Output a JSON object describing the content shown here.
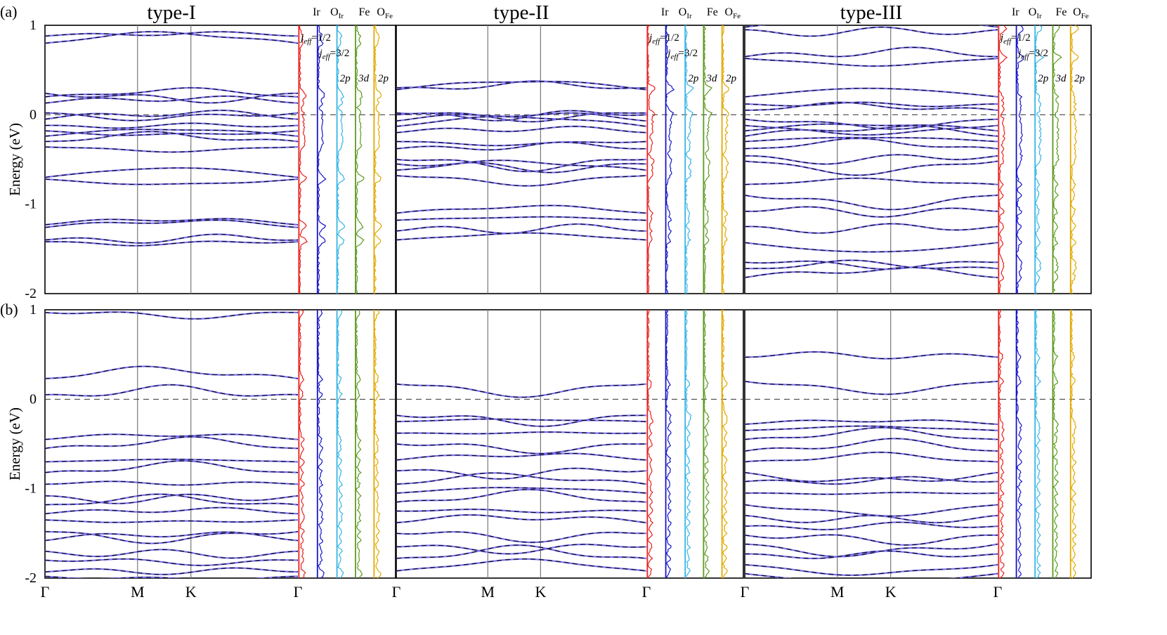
{
  "chart_data": {
    "type": "line",
    "panel_labels": [
      "(a)",
      "(b)"
    ],
    "ylabel": "Energy (eV)",
    "ylim": [
      -2,
      1
    ],
    "yticks": [
      "1",
      "0",
      "-1",
      "-2"
    ],
    "kpath": [
      "Γ",
      "M",
      "K",
      "Γ"
    ],
    "kpath_positions": [
      0,
      0.366,
      0.577,
      1
    ],
    "fermi_level": 0,
    "columns": [
      {
        "title": "type-I",
        "dos_headers": [
          "Ir",
          "O",
          "Fe",
          "O"
        ]
      },
      {
        "title": "type-II",
        "dos_headers": [
          "Ir",
          "O",
          "Fe",
          "O"
        ]
      },
      {
        "title": "type-III",
        "dos_headers": [
          "Ir",
          "O",
          "Fe",
          "O"
        ]
      }
    ],
    "dos_header_subscripts": [
      "Ir",
      "Fe"
    ],
    "dos_annotations": {
      "jeff_main": "j",
      "jeff_sub": "eff",
      "jeff_half": "=1/2",
      "jeff_threehalf": "=3/2",
      "o2p": "2p",
      "fe3d": "3d",
      "ofe2p": "2p"
    },
    "dos_channels": [
      {
        "name": "Ir jeff=1/2",
        "color": "#e8201d"
      },
      {
        "name": "Ir jeff=3/2",
        "color": "#1515c9"
      },
      {
        "name": "OIr 2p",
        "color": "#35b5e5"
      },
      {
        "name": "Fe 3d",
        "color": "#5c9a1e"
      },
      {
        "name": "OFe 2p",
        "color": "#e0a800"
      }
    ],
    "band_colors": {
      "dft": "#7a6ff0",
      "wannier": "#000000"
    },
    "panels": [
      {
        "row": "a",
        "col": "type-I",
        "bands_at_gamma": [
          0.88,
          0.8,
          0.24,
          0.2,
          0.13,
          0.02,
          -0.05,
          -0.12,
          -0.18,
          -0.24,
          -0.3,
          -0.36,
          -0.7,
          -0.72,
          -1.23,
          -1.26,
          -1.4,
          -1.42
        ]
      },
      {
        "row": "a",
        "col": "type-II",
        "bands_at_gamma": [
          0.3,
          0.28,
          0.02,
          0.0,
          -0.07,
          -0.13,
          -0.2,
          -0.3,
          -0.38,
          -0.5,
          -0.55,
          -0.62,
          -0.68,
          -1.1,
          -1.18,
          -1.3,
          -1.4
        ]
      },
      {
        "row": "a",
        "col": "type-III",
        "bands_at_gamma": [
          0.98,
          0.95,
          0.65,
          0.63,
          0.2,
          0.12,
          0.05,
          -0.05,
          -0.12,
          -0.18,
          -0.24,
          -0.3,
          -0.38,
          -0.46,
          -0.52,
          -0.78,
          -0.9,
          -1.08,
          -1.25,
          -1.43,
          -1.65,
          -1.72,
          -1.82
        ]
      },
      {
        "row": "b",
        "col": "type-I",
        "bands_at_gamma": [
          0.97,
          0.23,
          0.05,
          -0.45,
          -0.55,
          -0.7,
          -0.82,
          -0.95,
          -1.08,
          -1.18,
          -1.28,
          -1.35,
          -1.48,
          -1.58,
          -1.7,
          -1.8,
          -1.93,
          -1.98
        ]
      },
      {
        "row": "b",
        "col": "type-II",
        "bands_at_gamma": [
          0.17,
          -0.18,
          -0.25,
          -0.38,
          -0.5,
          -0.68,
          -0.8,
          -0.95,
          -1.05,
          -1.15,
          -1.25,
          -1.38,
          -1.5,
          -1.65,
          -1.78,
          -1.92
        ]
      },
      {
        "row": "b",
        "col": "type-III",
        "bands_at_gamma": [
          0.47,
          0.2,
          -0.28,
          -0.35,
          -0.45,
          -0.58,
          -0.7,
          -0.82,
          -0.92,
          -1.05,
          -1.18,
          -1.3,
          -1.42,
          -1.52,
          -1.62,
          -1.73,
          -1.85,
          -1.95
        ]
      }
    ]
  }
}
